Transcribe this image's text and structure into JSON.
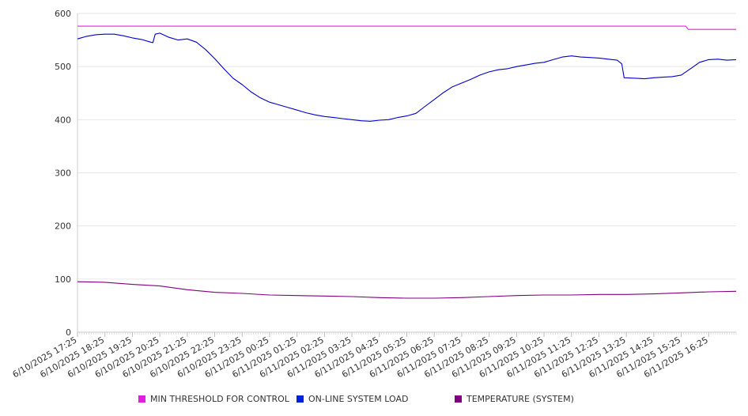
{
  "chart_data": {
    "type": "line",
    "ylim": [
      0,
      600
    ],
    "yticks": [
      0,
      100,
      200,
      300,
      400,
      500,
      600
    ],
    "grid": true,
    "legend_position": "bottom",
    "x_tick_labels": [
      "6/10/2025 17:25",
      "6/10/2025 18:25",
      "6/10/2025 19:25",
      "6/10/2025 20:25",
      "6/10/2025 21:25",
      "6/10/2025 22:25",
      "6/10/2025 23:25",
      "6/11/2025 00:25",
      "6/11/2025 01:25",
      "6/11/2025 02:25",
      "6/11/2025 03:25",
      "6/11/2025 04:25",
      "6/11/2025 05:25",
      "6/11/2025 06:25",
      "6/11/2025 07:25",
      "6/11/2025 08:25",
      "6/11/2025 09:25",
      "6/11/2025 10:25",
      "6/11/2025 11:25",
      "6/11/2025 12:25",
      "6/11/2025 13:25",
      "6/11/2025 14:25",
      "6/11/2025 15:25",
      "6/11/2025 16:25"
    ],
    "x_start": "6/10/2025 17:25",
    "x_end": "6/11/2025 17:25",
    "series": [
      {
        "name": "MIN THRESHOLD FOR CONTROL",
        "color": "#e020e0",
        "points": [
          [
            "6/10/2025 17:25",
            576
          ],
          [
            "6/11/2025 15:35",
            576
          ],
          [
            "6/11/2025 15:40",
            570
          ],
          [
            "6/11/2025 17:25",
            570
          ]
        ]
      },
      {
        "name": "ON-LINE SYSTEM LOAD",
        "color": "#0000cc",
        "points": [
          [
            "6/10/2025 17:25",
            552
          ],
          [
            "6/10/2025 17:45",
            557
          ],
          [
            "6/10/2025 18:05",
            560
          ],
          [
            "6/10/2025 18:25",
            561
          ],
          [
            "6/10/2025 18:45",
            561
          ],
          [
            "6/10/2025 19:05",
            558
          ],
          [
            "6/10/2025 19:25",
            554
          ],
          [
            "6/10/2025 19:45",
            551
          ],
          [
            "6/10/2025 20:05",
            546
          ],
          [
            "6/10/2025 20:10",
            545
          ],
          [
            "6/10/2025 20:15",
            561
          ],
          [
            "6/10/2025 20:25",
            563
          ],
          [
            "6/10/2025 20:45",
            555
          ],
          [
            "6/10/2025 21:05",
            550
          ],
          [
            "6/10/2025 21:25",
            552
          ],
          [
            "6/10/2025 21:45",
            546
          ],
          [
            "6/10/2025 22:05",
            532
          ],
          [
            "6/10/2025 22:25",
            515
          ],
          [
            "6/10/2025 22:45",
            496
          ],
          [
            "6/10/2025 23:05",
            478
          ],
          [
            "6/10/2025 23:25",
            466
          ],
          [
            "6/10/2025 23:45",
            452
          ],
          [
            "6/11/2025 00:05",
            441
          ],
          [
            "6/11/2025 00:25",
            433
          ],
          [
            "6/11/2025 00:45",
            428
          ],
          [
            "6/11/2025 01:05",
            423
          ],
          [
            "6/11/2025 01:25",
            418
          ],
          [
            "6/11/2025 01:45",
            413
          ],
          [
            "6/11/2025 02:05",
            409
          ],
          [
            "6/11/2025 02:25",
            406
          ],
          [
            "6/11/2025 02:45",
            404
          ],
          [
            "6/11/2025 03:05",
            402
          ],
          [
            "6/11/2025 03:25",
            400
          ],
          [
            "6/11/2025 03:45",
            398
          ],
          [
            "6/11/2025 04:05",
            397
          ],
          [
            "6/11/2025 04:25",
            399
          ],
          [
            "6/11/2025 04:45",
            400
          ],
          [
            "6/11/2025 05:05",
            404
          ],
          [
            "6/11/2025 05:25",
            407
          ],
          [
            "6/11/2025 05:45",
            412
          ],
          [
            "6/11/2025 06:05",
            425
          ],
          [
            "6/11/2025 06:25",
            438
          ],
          [
            "6/11/2025 06:45",
            451
          ],
          [
            "6/11/2025 07:05",
            462
          ],
          [
            "6/11/2025 07:25",
            469
          ],
          [
            "6/11/2025 07:45",
            476
          ],
          [
            "6/11/2025 08:05",
            484
          ],
          [
            "6/11/2025 08:25",
            490
          ],
          [
            "6/11/2025 08:45",
            494
          ],
          [
            "6/11/2025 09:05",
            496
          ],
          [
            "6/11/2025 09:25",
            500
          ],
          [
            "6/11/2025 09:45",
            503
          ],
          [
            "6/11/2025 10:05",
            506
          ],
          [
            "6/11/2025 10:25",
            508
          ],
          [
            "6/11/2025 10:45",
            513
          ],
          [
            "6/11/2025 11:05",
            518
          ],
          [
            "6/11/2025 11:25",
            520
          ],
          [
            "6/11/2025 11:45",
            518
          ],
          [
            "6/11/2025 12:05",
            517
          ],
          [
            "6/11/2025 12:25",
            516
          ],
          [
            "6/11/2025 12:45",
            514
          ],
          [
            "6/11/2025 13:05",
            512
          ],
          [
            "6/11/2025 13:15",
            505
          ],
          [
            "6/11/2025 13:20",
            479
          ],
          [
            "6/11/2025 13:45",
            478
          ],
          [
            "6/11/2025 14:05",
            477
          ],
          [
            "6/11/2025 14:25",
            479
          ],
          [
            "6/11/2025 14:45",
            480
          ],
          [
            "6/11/2025 15:05",
            481
          ],
          [
            "6/11/2025 15:25",
            484
          ],
          [
            "6/11/2025 15:45",
            496
          ],
          [
            "6/11/2025 16:05",
            508
          ],
          [
            "6/11/2025 16:25",
            513
          ],
          [
            "6/11/2025 16:45",
            514
          ],
          [
            "6/11/2025 17:05",
            512
          ],
          [
            "6/11/2025 17:25",
            513
          ]
        ]
      },
      {
        "name": "TEMPERATURE (SYSTEM)",
        "color": "#800080",
        "points": [
          [
            "6/10/2025 17:25",
            95
          ],
          [
            "6/10/2025 18:25",
            94
          ],
          [
            "6/10/2025 19:25",
            90
          ],
          [
            "6/10/2025 20:25",
            87
          ],
          [
            "6/10/2025 21:25",
            80
          ],
          [
            "6/10/2025 22:25",
            75
          ],
          [
            "6/10/2025 23:25",
            73
          ],
          [
            "6/11/2025 00:25",
            70
          ],
          [
            "6/11/2025 01:25",
            69
          ],
          [
            "6/11/2025 02:25",
            68
          ],
          [
            "6/11/2025 03:25",
            67
          ],
          [
            "6/11/2025 04:25",
            65
          ],
          [
            "6/11/2025 05:25",
            64
          ],
          [
            "6/11/2025 06:25",
            64
          ],
          [
            "6/11/2025 07:25",
            65
          ],
          [
            "6/11/2025 08:25",
            67
          ],
          [
            "6/11/2025 09:25",
            69
          ],
          [
            "6/11/2025 10:25",
            70
          ],
          [
            "6/11/2025 11:25",
            70
          ],
          [
            "6/11/2025 12:25",
            71
          ],
          [
            "6/11/2025 13:25",
            71
          ],
          [
            "6/11/2025 14:25",
            72
          ],
          [
            "6/11/2025 15:25",
            74
          ],
          [
            "6/11/2025 16:25",
            76
          ],
          [
            "6/11/2025 17:25",
            77
          ]
        ]
      }
    ]
  }
}
